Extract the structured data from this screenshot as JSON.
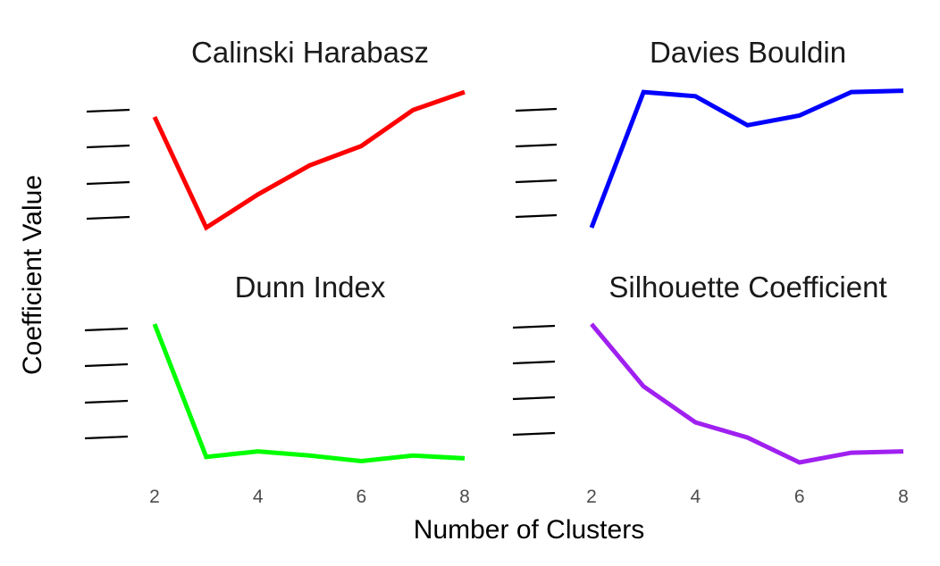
{
  "chart_data": {
    "type": "line",
    "layout": "2x2 facets",
    "xlabel": "Number of Clusters",
    "ylabel": "Coefficient Value",
    "x": [
      2,
      3,
      4,
      5,
      6,
      7,
      8
    ],
    "x_ticks": [
      2,
      4,
      6,
      8
    ],
    "xlim": [
      2,
      8
    ],
    "y_tick_labels_visible": false,
    "grid": false,
    "legend": "none",
    "panels": [
      {
        "title": "Calinski Harabasz",
        "color": "#ff0000",
        "values": [
          0.8,
          0.0,
          0.24,
          0.45,
          0.59,
          0.85,
          0.98
        ]
      },
      {
        "title": "Davies Bouldin",
        "color": "#0000ff",
        "values": [
          0.0,
          0.98,
          0.95,
          0.74,
          0.81,
          0.98,
          0.99
        ]
      },
      {
        "title": "Dunn Index",
        "color": "#00ff00",
        "values": [
          1.0,
          0.04,
          0.08,
          0.05,
          0.01,
          0.05,
          0.03
        ]
      },
      {
        "title": "Silhouette Coefficient",
        "color": "#a020f0",
        "values": [
          1.0,
          0.55,
          0.29,
          0.18,
          0.0,
          0.07,
          0.08
        ]
      }
    ]
  }
}
